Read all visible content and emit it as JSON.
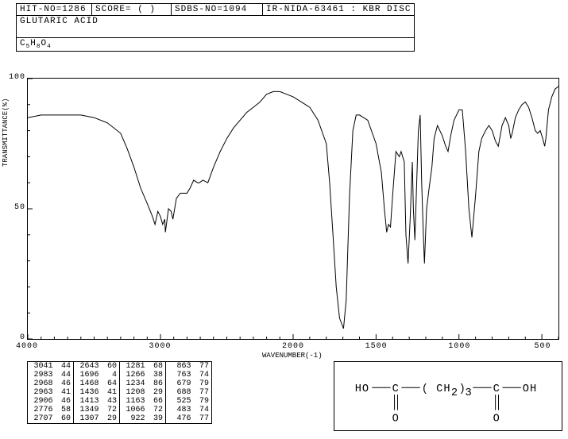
{
  "header": {
    "hit_no": "HIT-NO=1286",
    "score": "SCORE=   (   )",
    "sdbs_no": "SDBS-NO=1094",
    "ir_label": "IR-NIDA-63461 : KBR DISC",
    "compound_name": "GLUTARIC ACID",
    "formula_html": "C<sub>5</sub>H<sub>8</sub>O<sub>4</sub>"
  },
  "chart": {
    "type": "line",
    "xlabel": "WAVENUMBER(-1)",
    "ylabel": "TRANSMITTANCE(%)",
    "xmin": 400,
    "xmax": 4000,
    "ymin": 0,
    "ymax": 100,
    "xticks": [
      4000,
      3000,
      2000,
      1500,
      1000,
      500
    ],
    "yticks": [
      0,
      50,
      100
    ],
    "line_color": "#000000",
    "background": "#ffffff",
    "grid": false,
    "minor_ticks": true,
    "spectrum": [
      [
        4000,
        85
      ],
      [
        3900,
        86
      ],
      [
        3800,
        86
      ],
      [
        3700,
        86
      ],
      [
        3600,
        86
      ],
      [
        3500,
        85
      ],
      [
        3400,
        83
      ],
      [
        3300,
        79
      ],
      [
        3250,
        73
      ],
      [
        3200,
        66
      ],
      [
        3150,
        58
      ],
      [
        3100,
        52
      ],
      [
        3060,
        47
      ],
      [
        3041,
        44
      ],
      [
        3020,
        49
      ],
      [
        3000,
        47
      ],
      [
        2983,
        44
      ],
      [
        2968,
        46
      ],
      [
        2963,
        41
      ],
      [
        2940,
        50
      ],
      [
        2920,
        49
      ],
      [
        2906,
        46
      ],
      [
        2880,
        54
      ],
      [
        2850,
        56
      ],
      [
        2800,
        56
      ],
      [
        2776,
        58
      ],
      [
        2750,
        61
      ],
      [
        2720,
        60
      ],
      [
        2707,
        60
      ],
      [
        2680,
        61
      ],
      [
        2643,
        60
      ],
      [
        2600,
        66
      ],
      [
        2550,
        72
      ],
      [
        2500,
        77
      ],
      [
        2450,
        81
      ],
      [
        2400,
        84
      ],
      [
        2350,
        87
      ],
      [
        2300,
        89
      ],
      [
        2250,
        91
      ],
      [
        2200,
        94
      ],
      [
        2150,
        95
      ],
      [
        2100,
        95
      ],
      [
        2050,
        94
      ],
      [
        2000,
        93
      ],
      [
        1950,
        91
      ],
      [
        1900,
        89
      ],
      [
        1850,
        84
      ],
      [
        1800,
        75
      ],
      [
        1780,
        60
      ],
      [
        1760,
        40
      ],
      [
        1740,
        20
      ],
      [
        1720,
        8
      ],
      [
        1696,
        4
      ],
      [
        1680,
        15
      ],
      [
        1660,
        55
      ],
      [
        1640,
        80
      ],
      [
        1620,
        86
      ],
      [
        1600,
        86
      ],
      [
        1550,
        84
      ],
      [
        1500,
        75
      ],
      [
        1480,
        68
      ],
      [
        1468,
        64
      ],
      [
        1450,
        50
      ],
      [
        1436,
        41
      ],
      [
        1425,
        44
      ],
      [
        1413,
        43
      ],
      [
        1400,
        55
      ],
      [
        1380,
        72
      ],
      [
        1360,
        70
      ],
      [
        1349,
        72
      ],
      [
        1330,
        68
      ],
      [
        1320,
        40
      ],
      [
        1307,
        29
      ],
      [
        1295,
        45
      ],
      [
        1281,
        68
      ],
      [
        1275,
        50
      ],
      [
        1266,
        38
      ],
      [
        1255,
        60
      ],
      [
        1245,
        80
      ],
      [
        1234,
        86
      ],
      [
        1225,
        60
      ],
      [
        1215,
        40
      ],
      [
        1208,
        29
      ],
      [
        1195,
        50
      ],
      [
        1180,
        58
      ],
      [
        1163,
        66
      ],
      [
        1150,
        77
      ],
      [
        1130,
        82
      ],
      [
        1100,
        78
      ],
      [
        1080,
        74
      ],
      [
        1066,
        72
      ],
      [
        1050,
        78
      ],
      [
        1030,
        84
      ],
      [
        1000,
        88
      ],
      [
        980,
        88
      ],
      [
        960,
        72
      ],
      [
        940,
        50
      ],
      [
        922,
        39
      ],
      [
        900,
        55
      ],
      [
        880,
        72
      ],
      [
        863,
        77
      ],
      [
        840,
        80
      ],
      [
        820,
        82
      ],
      [
        800,
        80
      ],
      [
        780,
        76
      ],
      [
        763,
        74
      ],
      [
        740,
        82
      ],
      [
        720,
        85
      ],
      [
        700,
        82
      ],
      [
        679,
        79
      ],
      [
        688,
        77
      ],
      [
        660,
        85
      ],
      [
        640,
        88
      ],
      [
        620,
        90
      ],
      [
        600,
        91
      ],
      [
        580,
        89
      ],
      [
        560,
        85
      ],
      [
        540,
        80
      ],
      [
        525,
        79
      ],
      [
        510,
        80
      ],
      [
        495,
        77
      ],
      [
        483,
        74
      ],
      [
        476,
        77
      ],
      [
        460,
        88
      ],
      [
        440,
        93
      ],
      [
        420,
        96
      ],
      [
        400,
        97
      ]
    ]
  },
  "peaks": {
    "columns": 4,
    "rows": [
      [
        [
          3041,
          44
        ],
        [
          2643,
          60
        ],
        [
          1281,
          68
        ],
        [
          863,
          77
        ]
      ],
      [
        [
          2983,
          44
        ],
        [
          1696,
          4
        ],
        [
          1266,
          38
        ],
        [
          763,
          74
        ]
      ],
      [
        [
          2968,
          46
        ],
        [
          1468,
          64
        ],
        [
          1234,
          86
        ],
        [
          679,
          79
        ]
      ],
      [
        [
          2963,
          41
        ],
        [
          1436,
          41
        ],
        [
          1208,
          29
        ],
        [
          688,
          77
        ]
      ],
      [
        [
          2906,
          46
        ],
        [
          1413,
          43
        ],
        [
          1163,
          66
        ],
        [
          525,
          79
        ]
      ],
      [
        [
          2776,
          58
        ],
        [
          1349,
          72
        ],
        [
          1066,
          72
        ],
        [
          483,
          74
        ]
      ],
      [
        [
          2707,
          60
        ],
        [
          1307,
          29
        ],
        [
          922,
          39
        ],
        [
          476,
          77
        ]
      ]
    ]
  },
  "structure": {
    "labels": {
      "ho": "HO",
      "c": "C",
      "ch2": "( CH",
      "sub2": "2",
      "paren": " )",
      "sub3": "3",
      "oh": "OH",
      "o": "O"
    }
  }
}
